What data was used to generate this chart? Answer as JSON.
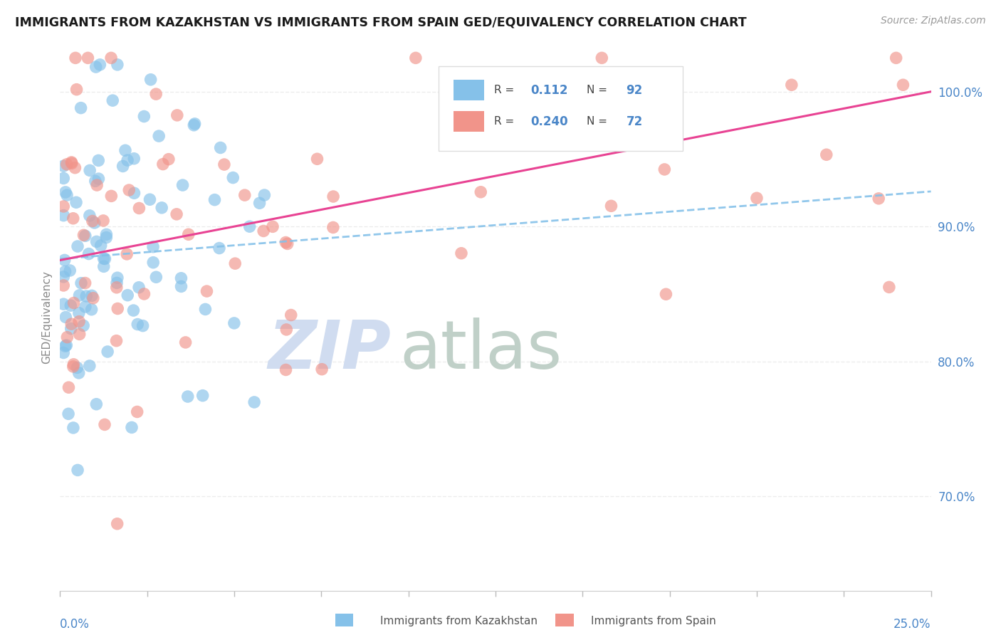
{
  "title": "IMMIGRANTS FROM KAZAKHSTAN VS IMMIGRANTS FROM SPAIN GED/EQUIVALENCY CORRELATION CHART",
  "source_text": "Source: ZipAtlas.com",
  "ylabel": "GED/Equivalency",
  "y_tick_labels": [
    "70.0%",
    "80.0%",
    "90.0%",
    "100.0%"
  ],
  "y_tick_values": [
    0.7,
    0.8,
    0.9,
    1.0
  ],
  "x_min": 0.0,
  "x_max": 0.25,
  "y_min": 0.63,
  "y_max": 1.035,
  "legend_R1": "0.112",
  "legend_N1": "92",
  "legend_R2": "0.240",
  "legend_N2": "72",
  "color_kazakhstan": "#85C1E9",
  "color_spain": "#F1948A",
  "color_trendline_kazakhstan": "#85C1E9",
  "color_trendline_spain": "#E84393",
  "watermark_zip": "ZIP",
  "watermark_atlas": "atlas",
  "watermark_color_zip": "#D0DCF0",
  "watermark_color_atlas": "#C0D0C8",
  "background_color": "#FFFFFF",
  "grid_color": "#E8E8E8",
  "title_color": "#1A1A1A",
  "label_color": "#4A86C8",
  "kaz_trend_intercept": 0.876,
  "kaz_trend_slope": 0.2,
  "spain_trend_intercept": 0.875,
  "spain_trend_slope": 0.5
}
